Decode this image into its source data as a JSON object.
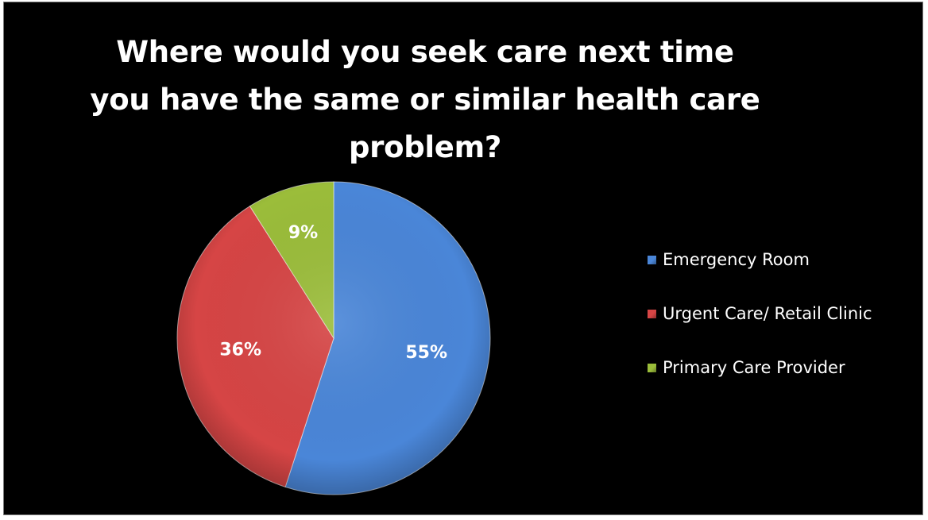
{
  "chart_data": {
    "type": "pie",
    "title": "Where would you seek care next time you have the same or similar health care problem?",
    "slices": [
      {
        "label": "Emergency Room",
        "value": 55,
        "display": "55%",
        "color": "#4a86d8"
      },
      {
        "label": "Urgent Care/ Retail Clinic",
        "value": 36,
        "display": "36%",
        "color": "#d64545"
      },
      {
        "label": "Primary Care Provider",
        "value": 9,
        "display": "9%",
        "color": "#9bbd3a"
      }
    ],
    "legend_position": "right",
    "background": "#000000"
  }
}
